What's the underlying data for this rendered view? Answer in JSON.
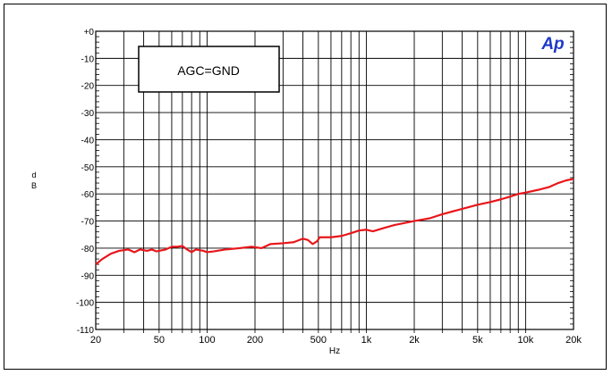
{
  "chart_data": {
    "type": "line",
    "title": "",
    "annotation": "AGC=GND",
    "logo": "Ap",
    "xlabel": "Hz",
    "ylabel": "dB",
    "x_scale": "log",
    "xlim": [
      20,
      20000
    ],
    "ylim": [
      -110,
      0
    ],
    "grid": true,
    "x_ticks": [
      {
        "value": 20,
        "label": "20"
      },
      {
        "value": 50,
        "label": "50"
      },
      {
        "value": 100,
        "label": "100"
      },
      {
        "value": 200,
        "label": "200"
      },
      {
        "value": 500,
        "label": "500"
      },
      {
        "value": 1000,
        "label": "1k"
      },
      {
        "value": 2000,
        "label": "2k"
      },
      {
        "value": 5000,
        "label": "5k"
      },
      {
        "value": 10000,
        "label": "10k"
      },
      {
        "value": 20000,
        "label": "20k"
      }
    ],
    "y_ticks": [
      {
        "value": 0,
        "label": "+0"
      },
      {
        "value": -10,
        "label": "-10"
      },
      {
        "value": -20,
        "label": "-20"
      },
      {
        "value": -30,
        "label": "-30"
      },
      {
        "value": -40,
        "label": "-40"
      },
      {
        "value": -50,
        "label": "-50"
      },
      {
        "value": -60,
        "label": "-60"
      },
      {
        "value": -70,
        "label": "-70"
      },
      {
        "value": -80,
        "label": "-80"
      },
      {
        "value": -90,
        "label": "-90"
      },
      {
        "value": -100,
        "label": "-100"
      },
      {
        "value": -110,
        "label": "-110"
      }
    ],
    "series": [
      {
        "color": "#e8161b",
        "points": [
          [
            20,
            -86
          ],
          [
            22,
            -84
          ],
          [
            25,
            -82
          ],
          [
            28,
            -81
          ],
          [
            32,
            -80.5
          ],
          [
            35,
            -81.5
          ],
          [
            38,
            -80.5
          ],
          [
            42,
            -81
          ],
          [
            45,
            -80.5
          ],
          [
            48,
            -81.2
          ],
          [
            55,
            -80.5
          ],
          [
            60,
            -79.5
          ],
          [
            65,
            -79.5
          ],
          [
            70,
            -79.2
          ],
          [
            75,
            -80.5
          ],
          [
            80,
            -81.5
          ],
          [
            85,
            -80.5
          ],
          [
            95,
            -81
          ],
          [
            100,
            -81.5
          ],
          [
            110,
            -81.2
          ],
          [
            130,
            -80.5
          ],
          [
            160,
            -80
          ],
          [
            190,
            -79.5
          ],
          [
            220,
            -80
          ],
          [
            250,
            -78.5
          ],
          [
            300,
            -78.2
          ],
          [
            350,
            -77.8
          ],
          [
            400,
            -76.5
          ],
          [
            430,
            -77
          ],
          [
            460,
            -78.5
          ],
          [
            490,
            -77.5
          ],
          [
            510,
            -76
          ],
          [
            600,
            -76
          ],
          [
            700,
            -75.5
          ],
          [
            800,
            -74.5
          ],
          [
            900,
            -73.5
          ],
          [
            1000,
            -73.2
          ],
          [
            1100,
            -73.8
          ],
          [
            1300,
            -72.5
          ],
          [
            1500,
            -71.5
          ],
          [
            2000,
            -70
          ],
          [
            2500,
            -69
          ],
          [
            3000,
            -67.5
          ],
          [
            4000,
            -65.5
          ],
          [
            5000,
            -64
          ],
          [
            6000,
            -63
          ],
          [
            7000,
            -62
          ],
          [
            8000,
            -61
          ],
          [
            9000,
            -60
          ],
          [
            10000,
            -59.5
          ],
          [
            12000,
            -58.5
          ],
          [
            14000,
            -57.5
          ],
          [
            16000,
            -56
          ],
          [
            18000,
            -55
          ],
          [
            20000,
            -54.5
          ]
        ]
      }
    ]
  }
}
